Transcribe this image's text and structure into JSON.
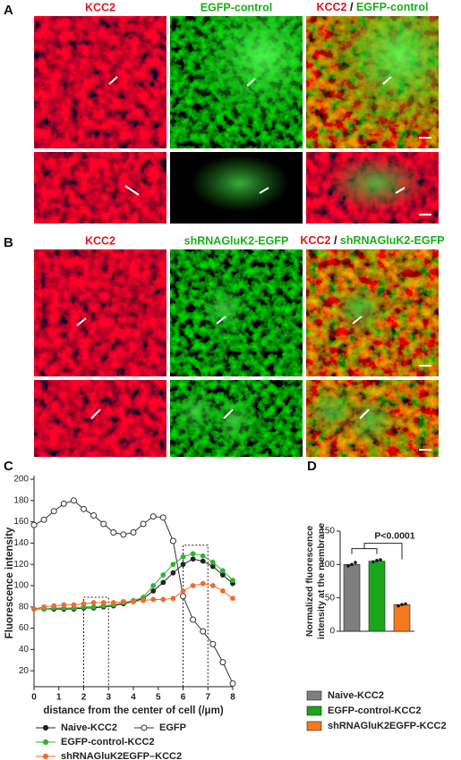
{
  "panels": [
    {
      "label": "A",
      "columns": [
        [
          "KCC2"
        ],
        [
          "EGFP-control"
        ],
        [
          "KCC2",
          "/",
          "EGFP-control"
        ]
      ]
    },
    {
      "label": "B",
      "columns": [
        [
          "KCC2"
        ],
        [
          "shRNAGluK2-EGFP"
        ],
        [
          "KCC2",
          "/",
          "shRNAGluK2-EGFP"
        ]
      ]
    }
  ],
  "chart_data": [
    {
      "type": "line",
      "panel_label": "C",
      "ylabel": "Fluorescence intensity",
      "xlabel": "distance from the center of cell (/μm)",
      "x": [
        0,
        0.4,
        0.8,
        1.2,
        1.6,
        2.0,
        2.4,
        2.8,
        3.2,
        3.6,
        4.0,
        4.4,
        4.8,
        5.2,
        5.6,
        6.0,
        6.4,
        6.8,
        7.2,
        7.6,
        8.0
      ],
      "xlim": [
        0,
        8
      ],
      "xticks": [
        0,
        1,
        2,
        3,
        4,
        5,
        6,
        7,
        8
      ],
      "ylim": [
        5,
        200
      ],
      "yticks": [
        20,
        40,
        60,
        80,
        100,
        120,
        140,
        160,
        180,
        200
      ],
      "highlight_boxes": [
        {
          "xlim": [
            2,
            3
          ],
          "top": 89
        },
        {
          "xlim": [
            6,
            7
          ],
          "top": 138
        }
      ],
      "series": [
        {
          "name": "Naive-KCC2",
          "color": "#222222",
          "marker": "filled",
          "values": [
            78,
            78,
            78,
            78,
            78,
            79,
            79,
            80,
            81,
            83,
            85,
            88,
            95,
            103,
            112,
            120,
            125,
            123,
            118,
            110,
            102
          ]
        },
        {
          "name": "EGFP",
          "color": "#333333",
          "marker": "open",
          "values": [
            157,
            162,
            170,
            177,
            180,
            172,
            166,
            158,
            150,
            148,
            150,
            158,
            165,
            164,
            142,
            90,
            68,
            57,
            45,
            28,
            8
          ]
        },
        {
          "name": "EGFP-control-KCC2",
          "color": "#2db52d",
          "marker": "filled",
          "values": [
            78,
            78,
            79,
            79,
            79,
            80,
            80,
            81,
            82,
            84,
            86,
            89,
            100,
            110,
            120,
            127,
            130,
            128,
            122,
            114,
            105
          ]
        },
        {
          "name": "shRNAGluK2EGFP–KCC2",
          "color": "#f26b2b",
          "marker": "filled",
          "values": [
            78,
            80,
            81,
            82,
            82,
            83,
            84,
            84,
            84,
            85,
            85,
            86,
            87,
            87,
            88,
            95,
            100,
            102,
            100,
            95,
            88
          ]
        }
      ]
    },
    {
      "type": "bar",
      "panel_label": "D",
      "ylabel": [
        "Normalized fluorescence",
        "intensity at the membrane"
      ],
      "categories": [
        "Naive-KCC2",
        "EGFP-control-KCC2",
        "shRNAGluK2EGFP-KCC2"
      ],
      "colors": [
        "#7f7f7f",
        "#1aa51a",
        "#f47a20"
      ],
      "values": [
        100,
        105,
        40
      ],
      "points": [
        [
          98,
          100,
          103
        ],
        [
          104,
          106,
          107
        ],
        [
          38,
          40,
          41
        ]
      ],
      "ylim": [
        0,
        150
      ],
      "yticks": [
        0,
        50,
        100,
        150
      ],
      "annotation": "P<0.0001"
    }
  ]
}
